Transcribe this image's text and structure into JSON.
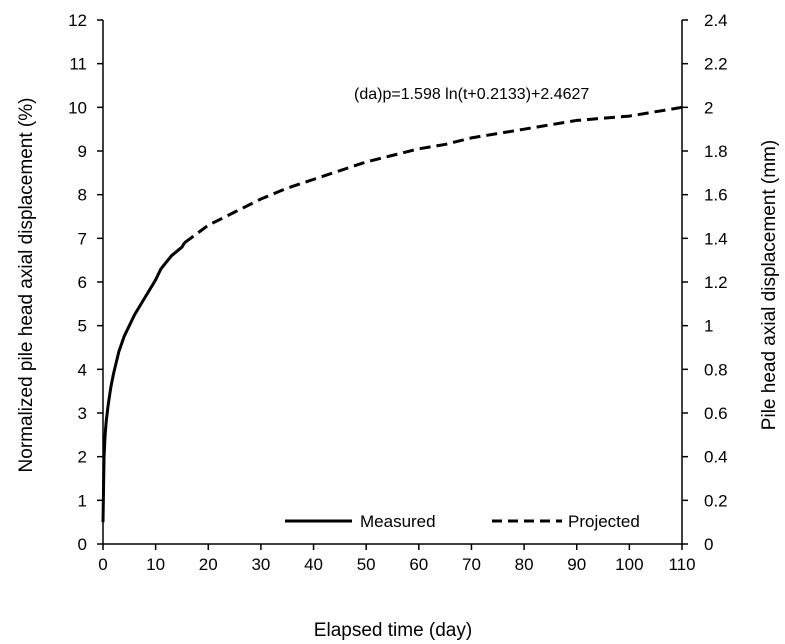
{
  "chart_data": {
    "type": "line",
    "xlabel": "Elapsed time (day)",
    "ylabel": "Normalized pile head axial displacement (%)",
    "y2label": "Pile head axial displacement (mm)",
    "xlim": [
      0,
      110
    ],
    "ylim": [
      0,
      12
    ],
    "y2lim": [
      0,
      2.4
    ],
    "xticks": [
      0,
      10,
      20,
      30,
      40,
      50,
      60,
      70,
      80,
      90,
      100,
      110
    ],
    "yticks": [
      0,
      1,
      2,
      3,
      4,
      5,
      6,
      7,
      8,
      9,
      10,
      11,
      12
    ],
    "y2ticks": [
      "0",
      "0.2",
      "0.4",
      "0.6",
      "0.8",
      "1",
      "1.2",
      "1.4",
      "1.6",
      "1.8",
      "2",
      "2.2",
      "2.4"
    ],
    "grid": false,
    "legend_position": "bottom-right",
    "annotation": "(da)p=1.598 ln(t+0.2133)+2.4627",
    "series": [
      {
        "name": "Measured",
        "style": "solid",
        "x": [
          0.0,
          0.2,
          0.4,
          0.6,
          0.8,
          1.0,
          1.5,
          2.0,
          3.0,
          4.0,
          5.0,
          6.0,
          7.0,
          8.0,
          9.0,
          10.0,
          11.0,
          12.0,
          13.0,
          14.0,
          15.0,
          15.5
        ],
        "y": [
          0.5,
          2.0,
          2.5,
          2.8,
          3.0,
          3.2,
          3.6,
          3.9,
          4.4,
          4.75,
          5.0,
          5.25,
          5.45,
          5.65,
          5.85,
          6.05,
          6.3,
          6.45,
          6.6,
          6.7,
          6.8,
          6.9
        ]
      },
      {
        "name": "Projected",
        "style": "dashed",
        "x": [
          15.5,
          20,
          25,
          30,
          35,
          40,
          45,
          50,
          55,
          60,
          65,
          70,
          75,
          80,
          85,
          90,
          95,
          100,
          105,
          110
        ],
        "y": [
          6.9,
          7.3,
          7.6,
          7.9,
          8.15,
          8.35,
          8.55,
          8.75,
          8.9,
          9.05,
          9.15,
          9.3,
          9.4,
          9.5,
          9.6,
          9.7,
          9.75,
          9.8,
          9.9,
          10.0
        ]
      }
    ]
  }
}
